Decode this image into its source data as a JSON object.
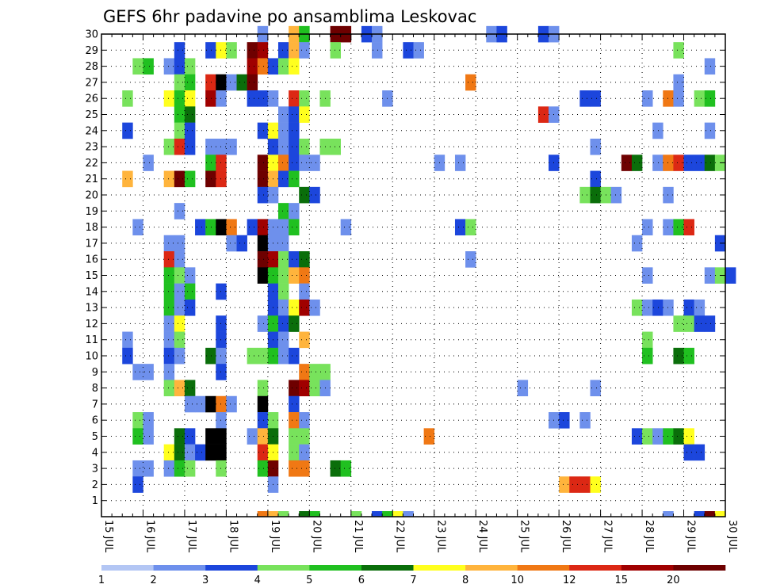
{
  "chart_data": {
    "type": "heatmap",
    "title": "GEFS 6hr padavine po ansamblima Leskovac",
    "xlabel": "",
    "ylabel": "",
    "x_ticks": [
      "15 JUL",
      "16 JUL",
      "17 JUL",
      "18 JUL",
      "19 JUL",
      "20 JUL",
      "21 JUL",
      "22 JUL",
      "23 JUL",
      "24 JUL",
      "25 JUL",
      "26 JUL",
      "27 JUL",
      "28 JUL",
      "29 JUL",
      "30 JUL"
    ],
    "y_ticks": [
      1,
      2,
      3,
      4,
      5,
      6,
      7,
      8,
      9,
      10,
      11,
      12,
      13,
      14,
      15,
      16,
      17,
      18,
      19,
      20,
      21,
      22,
      23,
      24,
      25,
      26,
      27,
      28,
      29,
      30
    ],
    "xlim": [
      0,
      60
    ],
    "ylim": [
      0,
      30
    ],
    "grid": true,
    "legend": {
      "placement": "bottom",
      "levels": [
        "1",
        "2",
        "3",
        "4",
        "5",
        "6",
        "7",
        "8",
        "10",
        "12",
        "15",
        "20"
      ],
      "colors": [
        "#b3c6f4",
        "#6e90ec",
        "#1c46dc",
        "#78e25c",
        "#20c020",
        "#0a6e0a",
        "#ffff1e",
        "#ffb43c",
        "#f07814",
        "#dc2814",
        "#a00000",
        "#6e0000"
      ]
    },
    "x_units": "6-hour steps from 15 JUL (4 per day)",
    "y_units": "ensemble member",
    "cells": [
      [
        15,
        30,
        1
      ],
      [
        18,
        30,
        7
      ],
      [
        19,
        30,
        4
      ],
      [
        22,
        30,
        11
      ],
      [
        23,
        30,
        11
      ],
      [
        25,
        30,
        2
      ],
      [
        26,
        30,
        1
      ],
      [
        37,
        30,
        1
      ],
      [
        38,
        30,
        2
      ],
      [
        42,
        30,
        2
      ],
      [
        43,
        30,
        1
      ],
      [
        7,
        29,
        2
      ],
      [
        10,
        29,
        2
      ],
      [
        11,
        29,
        6
      ],
      [
        12,
        29,
        3
      ],
      [
        14,
        29,
        11
      ],
      [
        15,
        29,
        10
      ],
      [
        17,
        29,
        2
      ],
      [
        18,
        29,
        7
      ],
      [
        19,
        29,
        1
      ],
      [
        22,
        29,
        3
      ],
      [
        26,
        29,
        1
      ],
      [
        29,
        29,
        2
      ],
      [
        30,
        29,
        1
      ],
      [
        55,
        29,
        3
      ],
      [
        3,
        28,
        3
      ],
      [
        4,
        28,
        4
      ],
      [
        6,
        28,
        1
      ],
      [
        7,
        28,
        2
      ],
      [
        8,
        28,
        3
      ],
      [
        14,
        28,
        10
      ],
      [
        15,
        28,
        8
      ],
      [
        16,
        28,
        2
      ],
      [
        17,
        28,
        3
      ],
      [
        18,
        28,
        6
      ],
      [
        58,
        28,
        1
      ],
      [
        7,
        27,
        3
      ],
      [
        8,
        27,
        4
      ],
      [
        10,
        27,
        9
      ],
      [
        11,
        27,
        12
      ],
      [
        12,
        27,
        1
      ],
      [
        13,
        27,
        5
      ],
      [
        14,
        27,
        11
      ],
      [
        35,
        27,
        8
      ],
      [
        55,
        27,
        1
      ],
      [
        2,
        26,
        3
      ],
      [
        6,
        26,
        6
      ],
      [
        7,
        26,
        4
      ],
      [
        8,
        26,
        6
      ],
      [
        10,
        26,
        10
      ],
      [
        11,
        26,
        1
      ],
      [
        14,
        26,
        2
      ],
      [
        15,
        26,
        2
      ],
      [
        16,
        26,
        1
      ],
      [
        18,
        26,
        9
      ],
      [
        19,
        26,
        3
      ],
      [
        21,
        26,
        3
      ],
      [
        27,
        26,
        1
      ],
      [
        46,
        26,
        2
      ],
      [
        47,
        26,
        2
      ],
      [
        52,
        26,
        1
      ],
      [
        54,
        26,
        8
      ],
      [
        55,
        26,
        1
      ],
      [
        57,
        26,
        3
      ],
      [
        58,
        26,
        4
      ],
      [
        7,
        25,
        4
      ],
      [
        8,
        25,
        5
      ],
      [
        17,
        25,
        1
      ],
      [
        18,
        25,
        2
      ],
      [
        19,
        25,
        6
      ],
      [
        42,
        25,
        9
      ],
      [
        43,
        25,
        1
      ],
      [
        2,
        24,
        2
      ],
      [
        7,
        24,
        3
      ],
      [
        8,
        24,
        2
      ],
      [
        15,
        24,
        2
      ],
      [
        16,
        24,
        6
      ],
      [
        17,
        24,
        1
      ],
      [
        18,
        24,
        2
      ],
      [
        53,
        24,
        1
      ],
      [
        58,
        24,
        1
      ],
      [
        6,
        23,
        3
      ],
      [
        7,
        23,
        9
      ],
      [
        8,
        23,
        2
      ],
      [
        10,
        23,
        1
      ],
      [
        11,
        23,
        1
      ],
      [
        12,
        23,
        1
      ],
      [
        16,
        23,
        2
      ],
      [
        17,
        23,
        1
      ],
      [
        18,
        23,
        2
      ],
      [
        19,
        23,
        3
      ],
      [
        21,
        23,
        3
      ],
      [
        22,
        23,
        3
      ],
      [
        47,
        23,
        1
      ],
      [
        4,
        22,
        1
      ],
      [
        10,
        22,
        4
      ],
      [
        11,
        22,
        9
      ],
      [
        15,
        22,
        11
      ],
      [
        16,
        22,
        6
      ],
      [
        17,
        22,
        8
      ],
      [
        18,
        22,
        2
      ],
      [
        19,
        22,
        1
      ],
      [
        20,
        22,
        1
      ],
      [
        32,
        22,
        1
      ],
      [
        34,
        22,
        1
      ],
      [
        43,
        22,
        2
      ],
      [
        50,
        22,
        11
      ],
      [
        51,
        22,
        5
      ],
      [
        53,
        22,
        1
      ],
      [
        54,
        22,
        8
      ],
      [
        55,
        22,
        9
      ],
      [
        56,
        22,
        2
      ],
      [
        57,
        22,
        2
      ],
      [
        58,
        22,
        5
      ],
      [
        59,
        22,
        3
      ],
      [
        2,
        21,
        7
      ],
      [
        6,
        21,
        7
      ],
      [
        7,
        21,
        11
      ],
      [
        8,
        21,
        4
      ],
      [
        10,
        21,
        11
      ],
      [
        11,
        21,
        9
      ],
      [
        15,
        21,
        11
      ],
      [
        16,
        21,
        7
      ],
      [
        17,
        21,
        2
      ],
      [
        18,
        21,
        4
      ],
      [
        47,
        21,
        2
      ],
      [
        15,
        20,
        2
      ],
      [
        16,
        20,
        1
      ],
      [
        19,
        20,
        5
      ],
      [
        20,
        20,
        2
      ],
      [
        46,
        20,
        3
      ],
      [
        47,
        20,
        5
      ],
      [
        48,
        20,
        3
      ],
      [
        49,
        20,
        1
      ],
      [
        54,
        20,
        1
      ],
      [
        7,
        19,
        1
      ],
      [
        17,
        19,
        4
      ],
      [
        18,
        19,
        1
      ],
      [
        3,
        18,
        1
      ],
      [
        9,
        18,
        2
      ],
      [
        10,
        18,
        4
      ],
      [
        11,
        18,
        12
      ],
      [
        12,
        18,
        8
      ],
      [
        14,
        18,
        2
      ],
      [
        15,
        18,
        10
      ],
      [
        16,
        18,
        1
      ],
      [
        17,
        18,
        1
      ],
      [
        18,
        18,
        4
      ],
      [
        23,
        18,
        1
      ],
      [
        34,
        18,
        2
      ],
      [
        35,
        18,
        3
      ],
      [
        52,
        18,
        1
      ],
      [
        54,
        18,
        1
      ],
      [
        55,
        18,
        4
      ],
      [
        56,
        18,
        9
      ],
      [
        6,
        17,
        1
      ],
      [
        7,
        17,
        1
      ],
      [
        12,
        17,
        1
      ],
      [
        13,
        17,
        2
      ],
      [
        15,
        17,
        12
      ],
      [
        16,
        17,
        1
      ],
      [
        17,
        17,
        1
      ],
      [
        51,
        17,
        1
      ],
      [
        59,
        17,
        2
      ],
      [
        6,
        16,
        9
      ],
      [
        7,
        16,
        1
      ],
      [
        15,
        16,
        11
      ],
      [
        16,
        16,
        10
      ],
      [
        17,
        16,
        3
      ],
      [
        18,
        16,
        2
      ],
      [
        19,
        16,
        5
      ],
      [
        35,
        16,
        1
      ],
      [
        6,
        15,
        4
      ],
      [
        7,
        15,
        3
      ],
      [
        8,
        15,
        1
      ],
      [
        15,
        15,
        12
      ],
      [
        16,
        15,
        4
      ],
      [
        17,
        15,
        3
      ],
      [
        18,
        15,
        7
      ],
      [
        19,
        15,
        8
      ],
      [
        52,
        15,
        1
      ],
      [
        58,
        15,
        1
      ],
      [
        59,
        15,
        3
      ],
      [
        60,
        15,
        2
      ],
      [
        6,
        14,
        4
      ],
      [
        7,
        14,
        1
      ],
      [
        8,
        14,
        4
      ],
      [
        11,
        14,
        2
      ],
      [
        16,
        14,
        2
      ],
      [
        17,
        14,
        3
      ],
      [
        19,
        14,
        1
      ],
      [
        6,
        13,
        4
      ],
      [
        7,
        13,
        1
      ],
      [
        8,
        13,
        2
      ],
      [
        16,
        13,
        2
      ],
      [
        17,
        13,
        1
      ],
      [
        18,
        13,
        6
      ],
      [
        19,
        13,
        10
      ],
      [
        20,
        13,
        1
      ],
      [
        51,
        13,
        3
      ],
      [
        52,
        13,
        1
      ],
      [
        53,
        13,
        2
      ],
      [
        54,
        13,
        1
      ],
      [
        56,
        13,
        2
      ],
      [
        57,
        13,
        1
      ],
      [
        6,
        12,
        1
      ],
      [
        7,
        12,
        6
      ],
      [
        11,
        12,
        2
      ],
      [
        15,
        12,
        1
      ],
      [
        16,
        12,
        4
      ],
      [
        17,
        12,
        2
      ],
      [
        18,
        12,
        5
      ],
      [
        55,
        12,
        3
      ],
      [
        56,
        12,
        3
      ],
      [
        57,
        12,
        2
      ],
      [
        58,
        12,
        2
      ],
      [
        2,
        11,
        1
      ],
      [
        6,
        11,
        1
      ],
      [
        7,
        11,
        3
      ],
      [
        11,
        11,
        2
      ],
      [
        16,
        11,
        2
      ],
      [
        17,
        11,
        1
      ],
      [
        19,
        11,
        7
      ],
      [
        52,
        11,
        3
      ],
      [
        2,
        10,
        2
      ],
      [
        6,
        10,
        2
      ],
      [
        7,
        10,
        1
      ],
      [
        10,
        10,
        5
      ],
      [
        11,
        10,
        1
      ],
      [
        14,
        10,
        3
      ],
      [
        15,
        10,
        3
      ],
      [
        16,
        10,
        4
      ],
      [
        17,
        10,
        1
      ],
      [
        18,
        10,
        2
      ],
      [
        52,
        10,
        4
      ],
      [
        55,
        10,
        5
      ],
      [
        56,
        10,
        4
      ],
      [
        3,
        9,
        1
      ],
      [
        4,
        9,
        1
      ],
      [
        6,
        9,
        1
      ],
      [
        11,
        9,
        2
      ],
      [
        19,
        9,
        8
      ],
      [
        20,
        9,
        3
      ],
      [
        21,
        9,
        3
      ],
      [
        6,
        8,
        3
      ],
      [
        7,
        8,
        7
      ],
      [
        8,
        8,
        5
      ],
      [
        15,
        8,
        3
      ],
      [
        18,
        8,
        11
      ],
      [
        19,
        8,
        10
      ],
      [
        20,
        8,
        3
      ],
      [
        21,
        8,
        1
      ],
      [
        40,
        8,
        1
      ],
      [
        47,
        8,
        1
      ],
      [
        8,
        7,
        1
      ],
      [
        9,
        7,
        1
      ],
      [
        10,
        7,
        12
      ],
      [
        11,
        7,
        8
      ],
      [
        12,
        7,
        1
      ],
      [
        15,
        7,
        12
      ],
      [
        18,
        7,
        2
      ],
      [
        3,
        6,
        3
      ],
      [
        4,
        6,
        1
      ],
      [
        11,
        6,
        1
      ],
      [
        15,
        6,
        2
      ],
      [
        16,
        6,
        3
      ],
      [
        18,
        6,
        8
      ],
      [
        19,
        6,
        1
      ],
      [
        43,
        6,
        1
      ],
      [
        44,
        6,
        2
      ],
      [
        46,
        6,
        1
      ],
      [
        3,
        5,
        4
      ],
      [
        4,
        5,
        1
      ],
      [
        7,
        5,
        5
      ],
      [
        8,
        5,
        2
      ],
      [
        10,
        5,
        12
      ],
      [
        11,
        5,
        12
      ],
      [
        14,
        5,
        1
      ],
      [
        15,
        5,
        7
      ],
      [
        16,
        5,
        5
      ],
      [
        18,
        5,
        3
      ],
      [
        19,
        5,
        3
      ],
      [
        31,
        5,
        8
      ],
      [
        51,
        5,
        2
      ],
      [
        52,
        5,
        3
      ],
      [
        53,
        5,
        1
      ],
      [
        54,
        5,
        4
      ],
      [
        55,
        5,
        5
      ],
      [
        56,
        5,
        6
      ],
      [
        6,
        4,
        6
      ],
      [
        7,
        4,
        5
      ],
      [
        8,
        4,
        1
      ],
      [
        9,
        4,
        2
      ],
      [
        10,
        4,
        12
      ],
      [
        11,
        4,
        12
      ],
      [
        15,
        4,
        9
      ],
      [
        16,
        4,
        6
      ],
      [
        18,
        4,
        3
      ],
      [
        19,
        4,
        1
      ],
      [
        56,
        4,
        2
      ],
      [
        57,
        4,
        2
      ],
      [
        3,
        3,
        1
      ],
      [
        4,
        3,
        1
      ],
      [
        6,
        3,
        1
      ],
      [
        7,
        3,
        4
      ],
      [
        8,
        3,
        3
      ],
      [
        11,
        3,
        3
      ],
      [
        15,
        3,
        4
      ],
      [
        16,
        3,
        11
      ],
      [
        18,
        3,
        8
      ],
      [
        19,
        3,
        8
      ],
      [
        22,
        3,
        5
      ],
      [
        23,
        3,
        4
      ],
      [
        3,
        2,
        2
      ],
      [
        16,
        2,
        1
      ],
      [
        44,
        2,
        7
      ],
      [
        45,
        2,
        9
      ],
      [
        46,
        2,
        9
      ],
      [
        47,
        2,
        6
      ]
    ],
    "bottom_strip": [
      [
        15,
        8
      ],
      [
        16,
        7
      ],
      [
        17,
        3
      ],
      [
        19,
        5
      ],
      [
        20,
        4
      ],
      [
        24,
        3
      ],
      [
        26,
        2
      ],
      [
        27,
        4
      ],
      [
        28,
        6
      ],
      [
        29,
        1
      ],
      [
        54,
        1
      ],
      [
        57,
        2
      ],
      [
        58,
        11
      ],
      [
        59,
        6
      ]
    ]
  }
}
